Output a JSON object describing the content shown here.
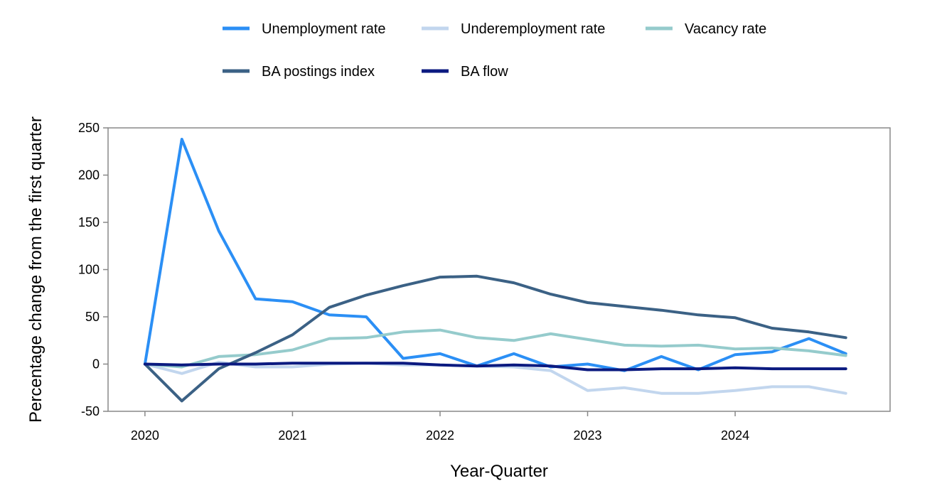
{
  "chart_data": {
    "type": "line",
    "title": "",
    "xlabel": "Year-Quarter",
    "ylabel": "Percentage change from the first quarter",
    "ylim": [
      -50,
      250
    ],
    "yticks": [
      -50,
      0,
      50,
      100,
      150,
      200,
      250
    ],
    "ytick_labels": [
      "-50",
      "0",
      "50",
      "100",
      "150",
      "200",
      "250"
    ],
    "xlim": [
      2019.75,
      2025.05
    ],
    "xticks": [
      2020,
      2021,
      2022,
      2023,
      2024
    ],
    "xtick_labels": [
      "2020",
      "2021",
      "2022",
      "2023",
      "2024"
    ],
    "grid": false,
    "legend_position": "top",
    "x": [
      2020,
      2020.25,
      2020.5,
      2020.75,
      2021,
      2021.25,
      2021.5,
      2021.75,
      2022,
      2022.25,
      2022.5,
      2022.75,
      2023,
      2023.25,
      2023.5,
      2023.75,
      2024,
      2024.25,
      2024.5,
      2024.75
    ],
    "series": [
      {
        "name": "Unemployment rate",
        "color": "#2b8ff5",
        "values": [
          0,
          238,
          141,
          69,
          66,
          52,
          50,
          6,
          11,
          -2,
          11,
          -3,
          0,
          -7,
          8,
          -6,
          10,
          13,
          27,
          11
        ]
      },
      {
        "name": "Underemployment rate",
        "color": "#c2d6ee",
        "values": [
          0,
          -10,
          2,
          -3,
          -3,
          0,
          1,
          -1,
          -1,
          -2,
          -3,
          -7,
          -28,
          -25,
          -31,
          -31,
          -28,
          -24,
          -24,
          -31
        ]
      },
      {
        "name": "Vacancy rate",
        "color": "#95cbcc",
        "values": [
          0,
          -3,
          8,
          10,
          15,
          27,
          28,
          34,
          36,
          28,
          25,
          32,
          26,
          20,
          19,
          20,
          16,
          17,
          14,
          9
        ]
      },
      {
        "name": "BA postings index",
        "color": "#3b6185",
        "values": [
          0,
          -39,
          -5,
          12,
          31,
          60,
          73,
          83,
          92,
          93,
          86,
          74,
          65,
          61,
          57,
          52,
          49,
          38,
          34,
          28
        ]
      },
      {
        "name": "BA flow",
        "color": "#0b1a80",
        "values": [
          0,
          -1,
          0,
          0,
          1,
          1,
          1,
          1,
          -1,
          -2,
          -1,
          -2,
          -6,
          -6,
          -5,
          -5,
          -4,
          -5,
          -5,
          -5
        ]
      }
    ]
  }
}
